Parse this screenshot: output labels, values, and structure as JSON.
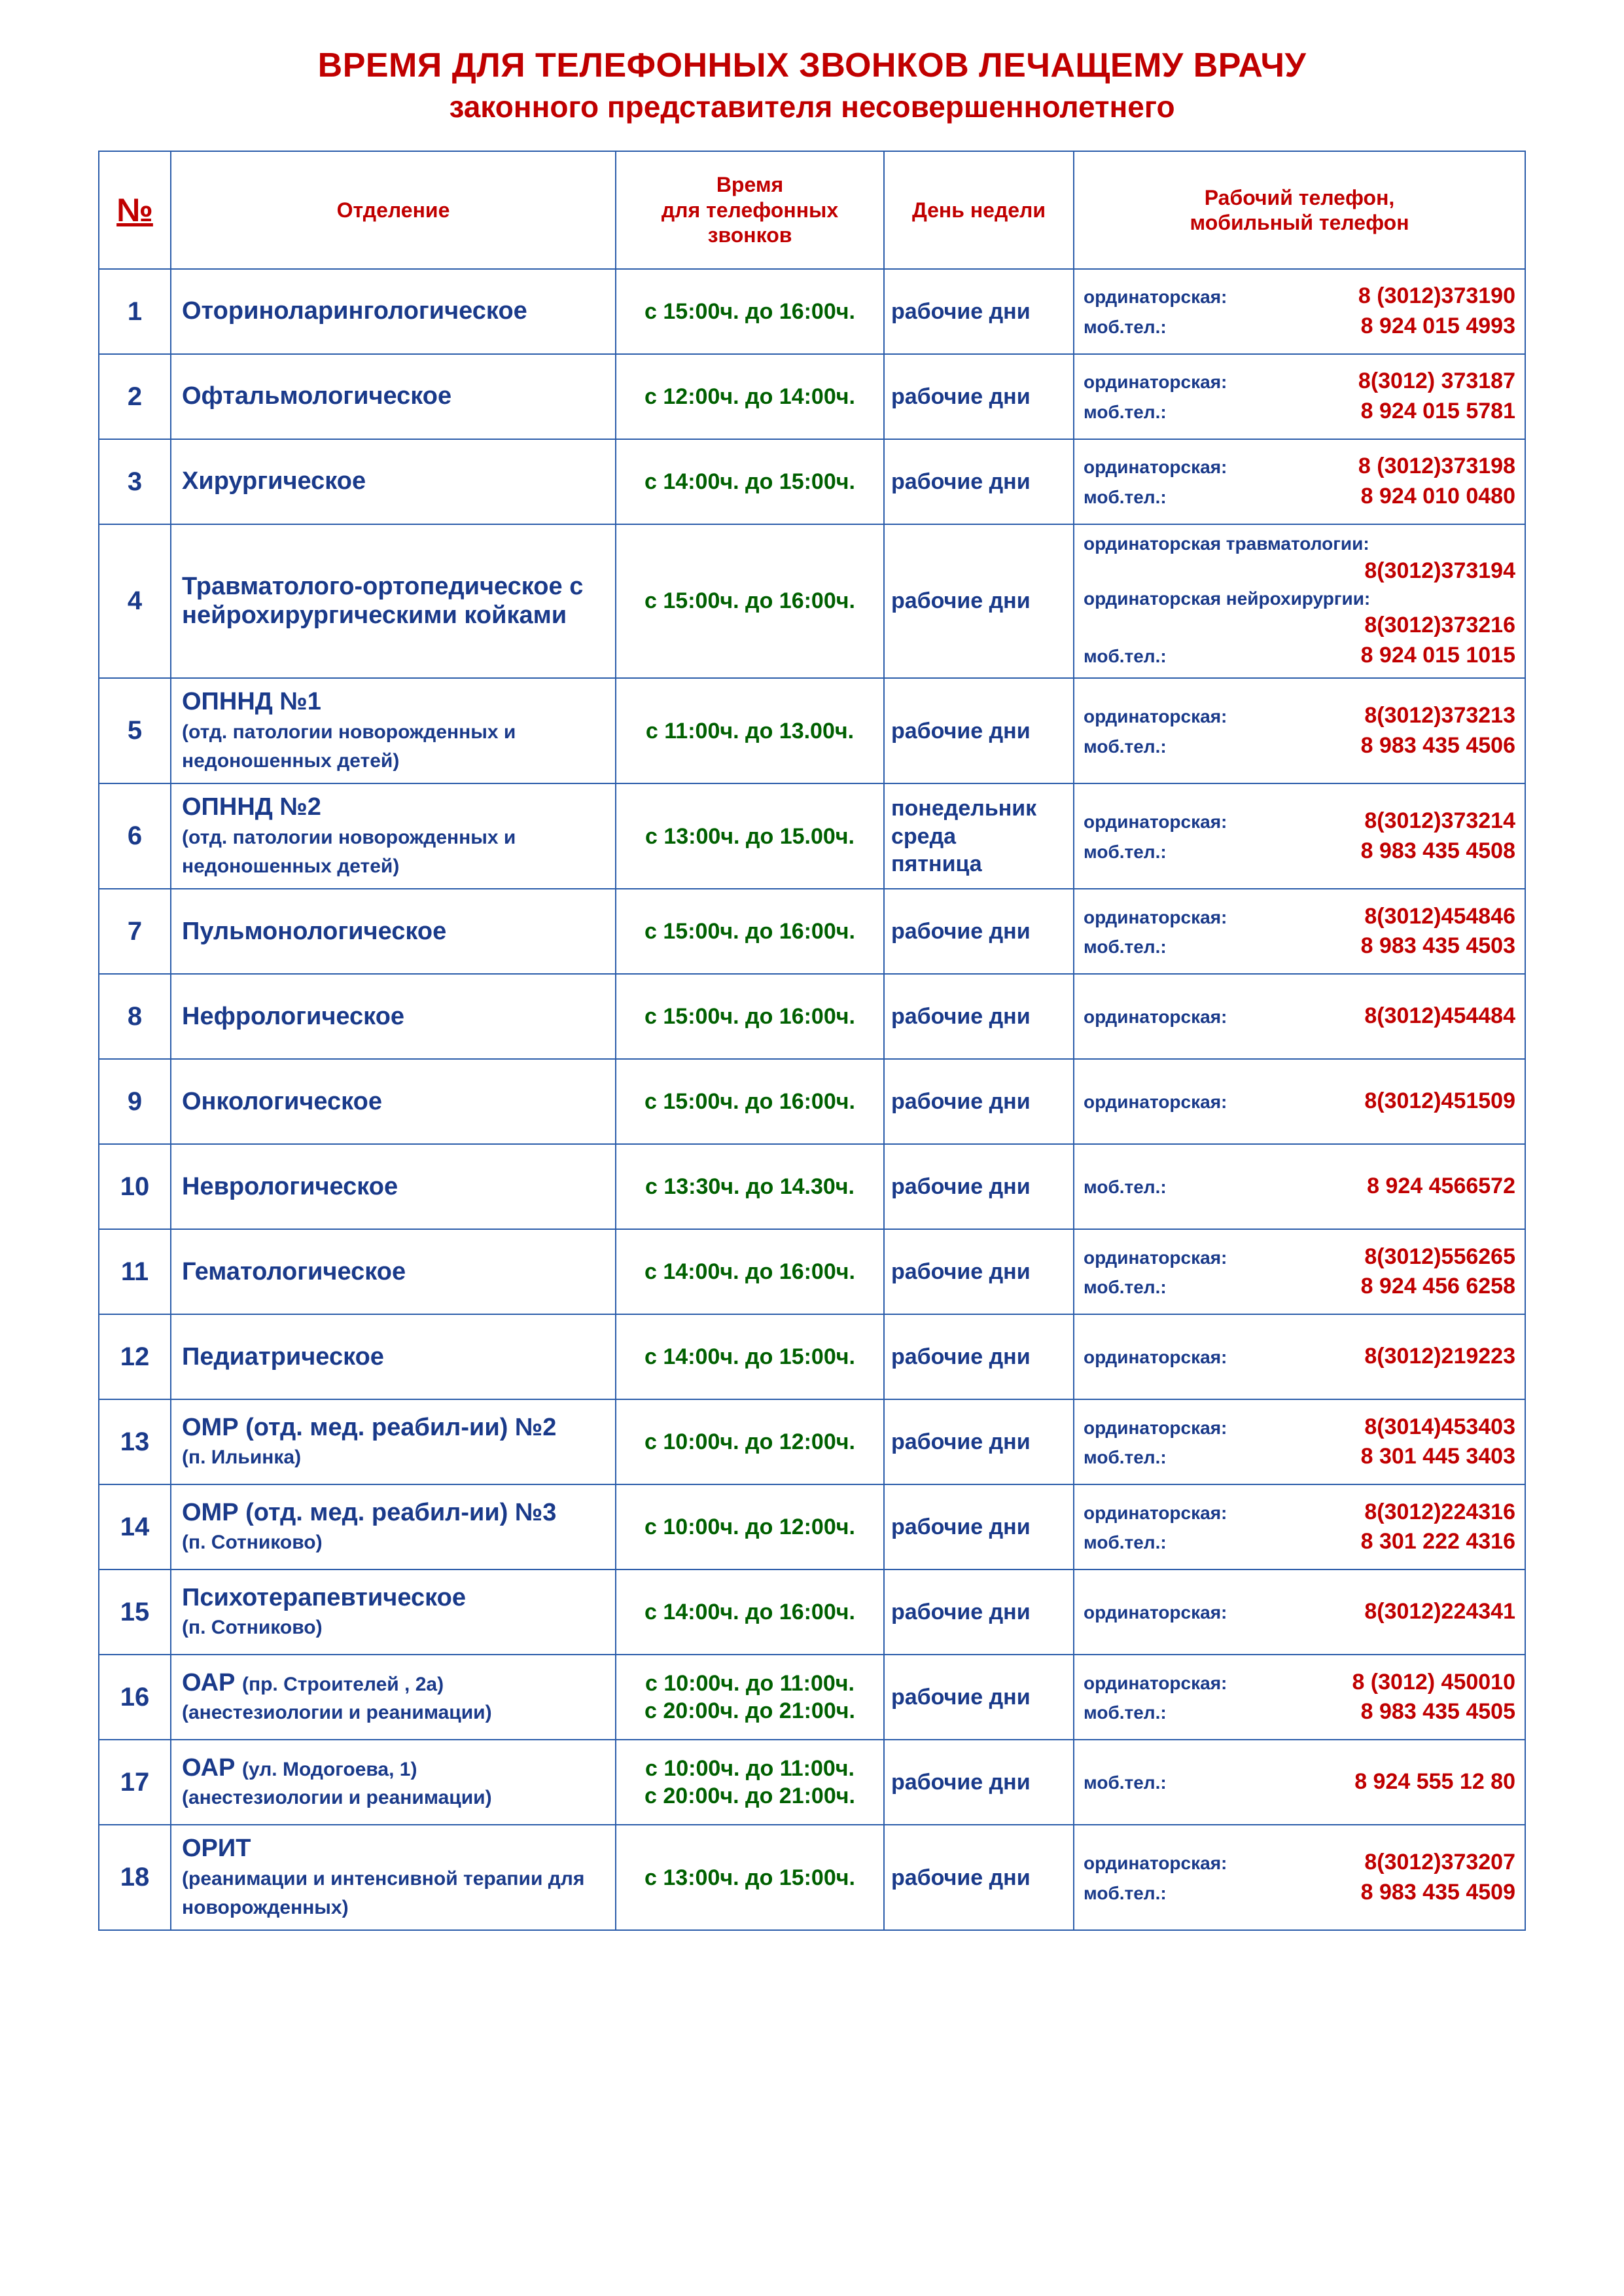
{
  "colors": {
    "red": "#c00000",
    "blue": "#1a3a8a",
    "green": "#006000",
    "border": "#2a5caa",
    "background": "#ffffff"
  },
  "title": {
    "line1": "ВРЕМЯ ДЛЯ ТЕЛЕФОННЫХ ЗВОНКОВ ЛЕЧАЩЕМУ ВРАЧУ",
    "line2": "законного представителя несовершеннолетнего"
  },
  "headers": {
    "num": "№",
    "dept": "Отделение",
    "time_l1": "Время",
    "time_l2": "для телефонных",
    "time_l3": "звонков",
    "day": "День недели",
    "phone_l1": "Рабочий телефон,",
    "phone_l2": "мобильный телефон"
  },
  "labels": {
    "ord": "ординаторская:",
    "mob": "моб.тел.:"
  },
  "rows": [
    {
      "num": "1",
      "dept_main": "Оториноларингологическое",
      "dept_note": "",
      "times": [
        "с 15:00ч. до 16:00ч."
      ],
      "days": [
        "рабочие дни"
      ],
      "phones": [
        {
          "label": "ординаторская:",
          "num": "8 (3012)373190"
        },
        {
          "label": "моб.тел.:",
          "num": "8 924 015 4993"
        }
      ]
    },
    {
      "num": "2",
      "dept_main": "Офтальмологическое",
      "dept_note": "",
      "times": [
        "с 12:00ч. до 14:00ч."
      ],
      "days": [
        "рабочие дни"
      ],
      "phones": [
        {
          "label": "ординаторская:",
          "num": "8(3012) 373187"
        },
        {
          "label": "моб.тел.:",
          "num": "8 924 015 5781"
        }
      ]
    },
    {
      "num": "3",
      "dept_main": "Хирургическое",
      "dept_note": "",
      "times": [
        "с 14:00ч. до 15:00ч."
      ],
      "days": [
        "рабочие дни"
      ],
      "phones": [
        {
          "label": "ординаторская:",
          "num": "8 (3012)373198"
        },
        {
          "label": "моб.тел.:",
          "num": "8 924 010 0480"
        }
      ]
    },
    {
      "num": "4",
      "dept_main": "Травматолого-ортопедическое с нейрохирургическими койками",
      "dept_note": "",
      "times": [
        "с 15:00ч. до 16:00ч."
      ],
      "days": [
        "рабочие дни"
      ],
      "phones_complex": [
        {
          "type": "note",
          "text": "ординаторская травматологии:"
        },
        {
          "type": "numright",
          "num": "8(3012)373194"
        },
        {
          "type": "note",
          "text": "ординаторская нейрохирургии:"
        },
        {
          "type": "numright",
          "num": "8(3012)373216"
        },
        {
          "type": "row",
          "label": "моб.тел.:",
          "num": "8 924 015 1015"
        }
      ]
    },
    {
      "num": "5",
      "dept_main": "ОПННД №1",
      "dept_note": "(отд. патологии новорожденных и недоношенных детей)",
      "times": [
        "с 11:00ч. до 13.00ч."
      ],
      "days": [
        "рабочие дни"
      ],
      "phones": [
        {
          "label": "ординаторская:",
          "num": "8(3012)373213"
        },
        {
          "label": "моб.тел.:",
          "num": "8 983 435 4506"
        }
      ]
    },
    {
      "num": "6",
      "dept_main": "ОПННД №2",
      "dept_note": "(отд. патологии новорожденных и недоношенных детей)",
      "times": [
        "с 13:00ч. до 15.00ч."
      ],
      "days": [
        "понедельник",
        "среда",
        "пятница"
      ],
      "phones": [
        {
          "label": "ординаторская:",
          "num": "8(3012)373214"
        },
        {
          "label": "моб.тел.:",
          "num": "8 983 435 4508"
        }
      ]
    },
    {
      "num": "7",
      "dept_main": "Пульмонологическое",
      "dept_note": "",
      "times": [
        "с 15:00ч. до 16:00ч."
      ],
      "days": [
        "рабочие дни"
      ],
      "phones": [
        {
          "label": "ординаторская:",
          "num": "8(3012)454846"
        },
        {
          "label": "моб.тел.:",
          "num": "8 983 435 4503"
        }
      ]
    },
    {
      "num": "8",
      "dept_main": "Нефрологическое",
      "dept_note": "",
      "times": [
        "с 15:00ч. до 16:00ч."
      ],
      "days": [
        "рабочие дни"
      ],
      "phones": [
        {
          "label": "ординаторская:",
          "num": "8(3012)454484"
        }
      ]
    },
    {
      "num": "9",
      "dept_main": "Онкологическое",
      "dept_note": "",
      "times": [
        "с 15:00ч. до 16:00ч."
      ],
      "days": [
        "рабочие дни"
      ],
      "phones": [
        {
          "label": "ординаторская:",
          "num": "8(3012)451509"
        }
      ]
    },
    {
      "num": "10",
      "dept_main": "Неврологическое",
      "dept_note": "",
      "times": [
        "с 13:30ч. до 14.30ч."
      ],
      "days": [
        "рабочие дни"
      ],
      "phones": [
        {
          "label": "моб.тел.:",
          "num": "8 924 4566572"
        }
      ]
    },
    {
      "num": "11",
      "dept_main": "Гематологическое",
      "dept_note": "",
      "times": [
        "с 14:00ч. до 16:00ч."
      ],
      "days": [
        "рабочие дни"
      ],
      "phones": [
        {
          "label": "ординаторская:",
          "num": "8(3012)556265"
        },
        {
          "label": "моб.тел.:",
          "num": "8 924 456 6258"
        }
      ]
    },
    {
      "num": "12",
      "dept_main": "Педиатрическое",
      "dept_note": "",
      "times": [
        "с 14:00ч. до 15:00ч."
      ],
      "days": [
        "рабочие дни"
      ],
      "phones": [
        {
          "label": "ординаторская:",
          "num": "8(3012)219223"
        }
      ]
    },
    {
      "num": "13",
      "dept_main": "ОМР (отд. мед. реабил-ии) №2",
      "dept_note": "(п. Ильинка)",
      "times": [
        "с 10:00ч. до 12:00ч."
      ],
      "days": [
        "рабочие дни"
      ],
      "phones": [
        {
          "label": "ординаторская:",
          "num": "8(3014)453403"
        },
        {
          "label": "моб.тел.:",
          "num": "8 301 445 3403"
        }
      ]
    },
    {
      "num": "14",
      "dept_main": "ОМР (отд. мед. реабил-ии) №3",
      "dept_note": "(п. Сотниково)",
      "times": [
        "с 10:00ч. до 12:00ч."
      ],
      "days": [
        "рабочие дни"
      ],
      "phones": [
        {
          "label": "ординаторская:",
          "num": "8(3012)224316"
        },
        {
          "label": "моб.тел.:",
          "num": "8 301 222 4316"
        }
      ]
    },
    {
      "num": "15",
      "dept_main": "Психотерапевтическое",
      "dept_note": "(п. Сотниково)",
      "times": [
        "с 14:00ч. до 16:00ч."
      ],
      "days": [
        "рабочие дни"
      ],
      "phones": [
        {
          "label": "ординаторская:",
          "num": "8(3012)224341"
        }
      ]
    },
    {
      "num": "16",
      "dept_main": "ОАР <span class=\"dept-name-note\">(пр. Строителей , 2а)</span>",
      "dept_note": "(анестезиологии и  реанимации)",
      "times": [
        "с 10:00ч. до 11:00ч.",
        "с 20:00ч. до 21:00ч."
      ],
      "days": [
        "рабочие дни"
      ],
      "phones": [
        {
          "label": "ординаторская:",
          "num": "8 (3012) 450010"
        },
        {
          "label": "моб.тел.:",
          "num": "8 983 435 4505"
        }
      ]
    },
    {
      "num": "17",
      "dept_main": "ОАР <span class=\"dept-name-note\">(ул. Модогоева, 1)</span>",
      "dept_note": "(анестезиологии и  реанимации)",
      "times": [
        "с 10:00ч. до 11:00ч.",
        "с 20:00ч. до 21:00ч."
      ],
      "days": [
        "рабочие дни"
      ],
      "phones": [
        {
          "label": "моб.тел.:",
          "num": "8 924 555 12 80"
        }
      ]
    },
    {
      "num": "18",
      "dept_main": "ОРИТ",
      "dept_note": "(реанимации и интенсивной терапии для новорожденных)",
      "times": [
        "с 13:00ч. до 15:00ч."
      ],
      "days": [
        "рабочие дни"
      ],
      "phones": [
        {
          "label": "ординаторская:",
          "num": "8(3012)373207"
        },
        {
          "label": "моб.тел.:",
          "num": "8 983 435 4509"
        }
      ]
    }
  ]
}
